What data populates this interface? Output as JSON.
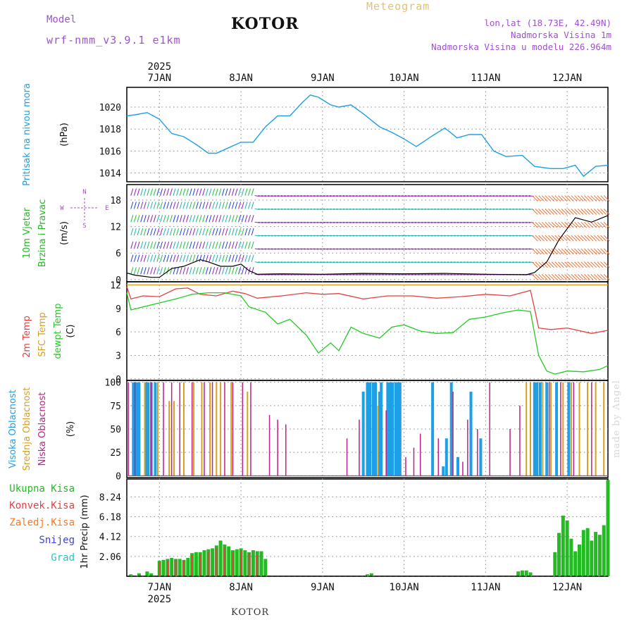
{
  "header": {
    "model_label": "Model",
    "model_value": "wrf-nmm_v3.9.1  e1km",
    "station": "KOTOR",
    "product": "Meteogram",
    "lonlat": "lon,lat (18.73E, 42.49N)",
    "elevation": "Nadmorska Visina 1m",
    "model_elevation": "Nadmorska Visina u modelu 226.964m",
    "footer_station": "KOTOR",
    "credit": "made by Angel"
  },
  "colors": {
    "pressure": "#1ea0e6",
    "wind_label": "#22bb22",
    "t2m": "#e64040",
    "sfc": "#d8a020",
    "dewpt": "#22cc22",
    "cloud_high": "#1ea0e6",
    "cloud_mid": "#d8a020",
    "cloud_low": "#c0208a",
    "precip_total": "#22bb22",
    "precip_conv": "#e64040",
    "precip_frozen": "#ff7820",
    "precip_snow": "#4040e0",
    "precip_graupel": "#20c8c8",
    "title": "#a050d0",
    "product": "#e8c070"
  },
  "chart_data": [
    {
      "type": "line",
      "name": "pressure",
      "ylabel": "Pritisak na nivou mora",
      "yunit": "(hPa)",
      "x_start_day": "6.6 JAN",
      "x_end_day": "12.5 JAN",
      "ylim": [
        1013.2,
        1021.8
      ],
      "yticks": [
        "1014",
        "1016",
        "1018",
        "1020"
      ],
      "grid": true,
      "series": [
        {
          "x": [
            6.6,
            6.7,
            6.85,
            7.0,
            7.15,
            7.3,
            7.45,
            7.6,
            7.7,
            7.85,
            8.0,
            8.15,
            8.3,
            8.45,
            8.6,
            8.75,
            8.85,
            8.95,
            9.1,
            9.2,
            9.35,
            9.5,
            9.7,
            9.85,
            10.0,
            10.15,
            10.35,
            10.5,
            10.65,
            10.8,
            10.95,
            11.1,
            11.25,
            11.45,
            11.6,
            11.8,
            11.95,
            12.1,
            12.2,
            12.35,
            12.5
          ],
          "values": [
            1019.2,
            1019.3,
            1019.5,
            1018.9,
            1017.6,
            1017.3,
            1016.6,
            1015.8,
            1015.8,
            1016.3,
            1016.8,
            1016.8,
            1018.2,
            1019.2,
            1019.2,
            1020.4,
            1021.1,
            1020.9,
            1020.2,
            1020.0,
            1020.2,
            1019.4,
            1018.2,
            1017.7,
            1017.1,
            1016.4,
            1017.4,
            1018.1,
            1017.2,
            1017.5,
            1017.5,
            1016.0,
            1015.5,
            1015.6,
            1014.6,
            1014.4,
            1014.4,
            1014.7,
            1013.7,
            1014.6,
            1014.7
          ]
        }
      ]
    },
    {
      "type": "line",
      "name": "wind",
      "ylabel": "10m Vjetar",
      "ylabel2": "Brzina i Pravac",
      "yunit": "(m/s)",
      "ylim": [
        -0.5,
        21.5
      ],
      "yticks": [
        "0",
        "6",
        "12",
        "18"
      ],
      "grid": true,
      "compass": [
        "N",
        "W",
        "E",
        "S"
      ],
      "series": [
        {
          "name": "speed",
          "x": [
            6.6,
            6.7,
            6.9,
            7.0,
            7.15,
            7.3,
            7.5,
            7.6,
            7.75,
            7.9,
            8.0,
            8.1,
            8.2,
            8.5,
            9.0,
            9.5,
            10.0,
            10.5,
            11.0,
            11.5,
            11.6,
            11.75,
            11.9,
            12.1,
            12.3,
            12.5
          ],
          "values": [
            1.5,
            1.0,
            0.5,
            0.5,
            2.5,
            3.0,
            4.5,
            4.0,
            3.0,
            3.0,
            3.5,
            2.0,
            1.2,
            1.3,
            1.2,
            1.4,
            1.3,
            1.4,
            1.2,
            1.1,
            1.6,
            4.0,
            9.0,
            14.0,
            13.0,
            14.5
          ]
        }
      ]
    },
    {
      "type": "line",
      "name": "temperature",
      "ylabel": "2m Temp",
      "ylabel2": "SFC Temp",
      "ylabel3": "dewpt Temp",
      "yunit": "(C)",
      "ylim": [
        -0.2,
        12.4
      ],
      "yticks": [
        "0",
        "3",
        "6",
        "9",
        "12"
      ],
      "grid": true,
      "series": [
        {
          "name": "2m Temp",
          "x": [
            6.6,
            6.65,
            6.8,
            7.0,
            7.2,
            7.35,
            7.5,
            7.7,
            7.9,
            8.05,
            8.2,
            8.5,
            8.8,
            9.0,
            9.2,
            9.5,
            9.8,
            10.1,
            10.4,
            10.7,
            11.0,
            11.3,
            11.55,
            11.6,
            11.65,
            11.8,
            12.0,
            12.3,
            12.5
          ],
          "values": [
            11.8,
            10.2,
            10.6,
            10.5,
            11.5,
            11.6,
            10.8,
            10.6,
            11.2,
            10.9,
            10.3,
            10.6,
            11.0,
            10.8,
            10.9,
            10.2,
            10.6,
            10.6,
            10.3,
            10.5,
            10.8,
            10.6,
            11.3,
            9.0,
            6.5,
            6.3,
            6.5,
            5.8,
            6.2
          ]
        },
        {
          "name": "SFC Temp",
          "x": [
            6.6,
            12.5
          ],
          "values": [
            12.0,
            12.0
          ]
        },
        {
          "name": "dewpt Temp",
          "x": [
            6.6,
            6.65,
            6.8,
            7.0,
            7.2,
            7.4,
            7.6,
            7.8,
            8.0,
            8.1,
            8.3,
            8.45,
            8.6,
            8.8,
            8.95,
            9.1,
            9.2,
            9.35,
            9.5,
            9.7,
            9.85,
            10.0,
            10.2,
            10.4,
            10.6,
            10.8,
            11.0,
            11.2,
            11.4,
            11.55,
            11.65,
            11.75,
            11.85,
            12.0,
            12.2,
            12.4,
            12.5
          ],
          "values": [
            11.0,
            8.8,
            9.2,
            9.7,
            10.2,
            10.8,
            11.0,
            11.0,
            10.6,
            9.2,
            8.5,
            7.0,
            7.6,
            5.6,
            3.3,
            4.6,
            3.6,
            6.6,
            5.8,
            5.2,
            6.6,
            6.9,
            6.1,
            5.8,
            5.9,
            7.6,
            7.9,
            8.4,
            8.8,
            8.6,
            3.0,
            1.0,
            0.6,
            1.0,
            0.9,
            1.2,
            1.7
          ]
        }
      ]
    },
    {
      "type": "bar",
      "name": "cloud",
      "ylabel": "Visoka Oblacnost",
      "ylabel2": "Srednja Oblacnost",
      "ylabel3": "Niska Oblacnost",
      "yunit": "(%)",
      "ylim": [
        -2,
        102
      ],
      "yticks": [
        "0",
        "25",
        "50",
        "75",
        "100"
      ],
      "grid": true,
      "series": [
        {
          "name": "Visoka Oblacnost",
          "x": [
            6.68,
            6.72,
            6.75,
            6.83,
            6.86,
            6.9,
            6.95,
            9.5,
            9.55,
            9.58,
            9.62,
            9.65,
            9.7,
            9.72,
            9.8,
            9.83,
            9.86,
            9.9,
            9.92,
            9.95,
            10.35,
            10.48,
            10.52,
            10.58,
            10.66,
            10.82,
            10.94,
            11.6,
            11.63,
            11.67,
            11.75,
            11.87,
            12.02
          ],
          "values": [
            100,
            100,
            100,
            100,
            100,
            100,
            100,
            90,
            100,
            100,
            100,
            100,
            90,
            100,
            100,
            100,
            100,
            100,
            100,
            100,
            100,
            10,
            40,
            100,
            20,
            90,
            40,
            100,
            100,
            100,
            100,
            100,
            100
          ]
        },
        {
          "name": "Srednja Oblacnost",
          "x": [
            6.82,
            6.98,
            7.12,
            7.18,
            7.3,
            7.42,
            7.52,
            7.62,
            7.7,
            7.75,
            7.88,
            8.08,
            9.68,
            11.5,
            11.55,
            11.7,
            11.8,
            11.95,
            12.05,
            12.15,
            12.25,
            12.35,
            12.45
          ],
          "values": [
            100,
            100,
            80,
            80,
            100,
            100,
            100,
            100,
            100,
            100,
            100,
            90,
            75,
            100,
            100,
            100,
            100,
            100,
            100,
            100,
            100,
            100,
            100
          ]
        },
        {
          "name": "Niska Oblacnost",
          "x": [
            6.62,
            6.7,
            6.9,
            7.05,
            7.15,
            7.25,
            7.4,
            7.55,
            7.65,
            7.8,
            7.9,
            8.02,
            8.12,
            8.35,
            8.45,
            8.55,
            9.3,
            9.45,
            9.78,
            10.02,
            10.12,
            10.2,
            10.42,
            10.6,
            10.72,
            10.78,
            10.9,
            11.05,
            11.3,
            11.42,
            11.78,
            11.92,
            12.08,
            12.3
          ],
          "values": [
            100,
            100,
            100,
            100,
            100,
            100,
            100,
            100,
            100,
            100,
            100,
            100,
            100,
            65,
            60,
            55,
            40,
            60,
            70,
            20,
            30,
            45,
            40,
            90,
            15,
            60,
            50,
            100,
            50,
            75,
            100,
            100,
            100,
            100
          ]
        }
      ]
    },
    {
      "type": "bar",
      "name": "precip",
      "ylabel": "1hr Precip",
      "yunit": "(mm)",
      "ylim": [
        0,
        10.1
      ],
      "yticks": [
        "2.06",
        "4.12",
        "6.18",
        "8.24"
      ],
      "grid": true,
      "legend": [
        "Ukupna Kisa",
        "Konvek.Kisa",
        "Zaledj.Kisa",
        "Snijeg",
        "Grad"
      ],
      "series": [
        {
          "name": "Ukupna Kisa",
          "x": [
            6.65,
            6.75,
            6.85,
            6.9,
            7.0,
            7.05,
            7.1,
            7.15,
            7.2,
            7.25,
            7.3,
            7.35,
            7.4,
            7.45,
            7.5,
            7.55,
            7.6,
            7.65,
            7.7,
            7.75,
            7.8,
            7.85,
            7.9,
            7.95,
            8.0,
            8.05,
            8.1,
            8.15,
            8.2,
            8.25,
            8.3,
            9.55,
            9.6,
            11.4,
            11.45,
            11.5,
            11.55,
            11.85,
            11.9,
            11.95,
            12.0,
            12.05,
            12.1,
            12.15,
            12.2,
            12.25,
            12.3,
            12.35,
            12.4,
            12.45,
            12.5
          ],
          "values": [
            0.2,
            0.3,
            0.5,
            0.3,
            1.6,
            1.7,
            1.8,
            1.9,
            1.8,
            1.8,
            1.7,
            1.9,
            2.4,
            2.5,
            2.5,
            2.7,
            2.8,
            2.9,
            3.2,
            3.7,
            3.3,
            3.1,
            2.7,
            2.8,
            2.9,
            2.7,
            2.5,
            2.7,
            2.6,
            2.6,
            1.8,
            0.2,
            0.3,
            0.5,
            0.6,
            0.6,
            0.4,
            2.5,
            4.5,
            6.3,
            5.8,
            3.9,
            2.6,
            3.3,
            4.8,
            5.0,
            3.7,
            4.6,
            4.3,
            5.3,
            10.0
          ]
        },
        {
          "name": "Konvek.Kisa",
          "x": [
            7.0,
            7.1,
            7.2,
            7.3,
            7.4,
            7.5,
            7.6,
            7.7,
            7.8,
            7.9,
            8.0,
            8.1,
            8.2
          ],
          "values": [
            1.5,
            1.6,
            1.7,
            1.6,
            2.2,
            2.3,
            2.5,
            2.9,
            3.0,
            2.5,
            2.7,
            2.4,
            2.2
          ]
        }
      ]
    }
  ],
  "x_axis": {
    "year_label": "2025",
    "day_labels": [
      "7JAN",
      "8JAN",
      "9JAN",
      "10JAN",
      "11JAN",
      "12JAN"
    ],
    "day_values": [
      7,
      8,
      9,
      10,
      11,
      12
    ]
  }
}
